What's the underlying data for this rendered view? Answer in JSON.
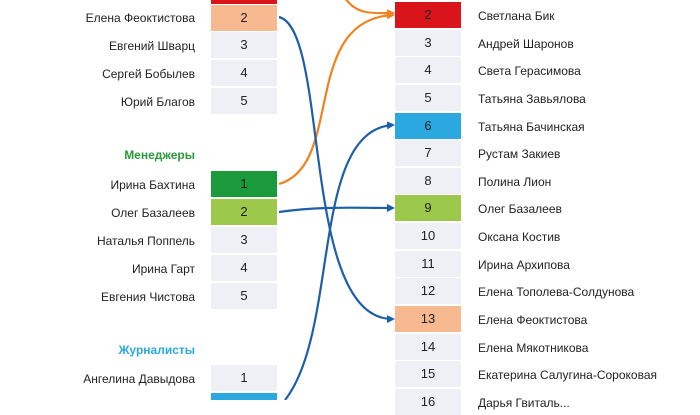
{
  "colors": {
    "red": "#d9141b",
    "peach": "#f7b98f",
    "green_dark": "#1a9a3a",
    "green_light": "#9cc84c",
    "blue": "#2ca8e0",
    "cell_bg": "#eef0f6",
    "orange_arrow": "#f0821e",
    "blue_arrow": "#1d5fa8",
    "section_green": "#2a9a3a",
    "section_blue": "#2ca8e0"
  },
  "left": {
    "group1": [
      {
        "name": "Елена Феоктистова",
        "rank": "2",
        "color": "peach"
      },
      {
        "name": "Евгений Шварц",
        "rank": "3",
        "color": ""
      },
      {
        "name": "Сергей Бобылев",
        "rank": "4",
        "color": ""
      },
      {
        "name": "Юрий Благов",
        "rank": "5",
        "color": ""
      }
    ],
    "managers_title": "Менеджеры",
    "managers": [
      {
        "name": "Ирина Бахтина",
        "rank": "1",
        "color": "green_dark"
      },
      {
        "name": "Олег Базалеев",
        "rank": "2",
        "color": "green_light"
      },
      {
        "name": "Наталья Поппель",
        "rank": "3",
        "color": ""
      },
      {
        "name": "Ирина Гарт",
        "rank": "4",
        "color": ""
      },
      {
        "name": "Евгения Чистова",
        "rank": "5",
        "color": ""
      }
    ],
    "journalists_title": "Журналисты",
    "journalists": [
      {
        "name": "Ангелина Давыдова",
        "rank": "1",
        "color": ""
      }
    ]
  },
  "right": [
    {
      "rank": "2",
      "name": "Светлана Бик",
      "color": "red"
    },
    {
      "rank": "3",
      "name": "Андрей Шаронов",
      "color": ""
    },
    {
      "rank": "4",
      "name": "Света Герасимова",
      "color": ""
    },
    {
      "rank": "5",
      "name": "Татьяна Завьялова",
      "color": ""
    },
    {
      "rank": "6",
      "name": "Татьяна Бачинская",
      "color": "blue"
    },
    {
      "rank": "7",
      "name": "Рустам Закиев",
      "color": ""
    },
    {
      "rank": "8",
      "name": "Полина Лион",
      "color": ""
    },
    {
      "rank": "9",
      "name": "Олег Базалеев",
      "color": "green_light"
    },
    {
      "rank": "10",
      "name": "Оксана Костив",
      "color": ""
    },
    {
      "rank": "11",
      "name": "Ирина Архипова",
      "color": ""
    },
    {
      "rank": "12",
      "name": "Елена Тополева-Солдунова",
      "color": ""
    },
    {
      "rank": "13",
      "name": "Елена Феоктистова",
      "color": "peach"
    },
    {
      "rank": "14",
      "name": "Елена Мякотникова",
      "color": ""
    },
    {
      "rank": "15",
      "name": "Екатерина Салугина-Сороковая",
      "color": ""
    },
    {
      "rank": "16",
      "name": "Дарья Гвиталь...",
      "color": ""
    }
  ]
}
